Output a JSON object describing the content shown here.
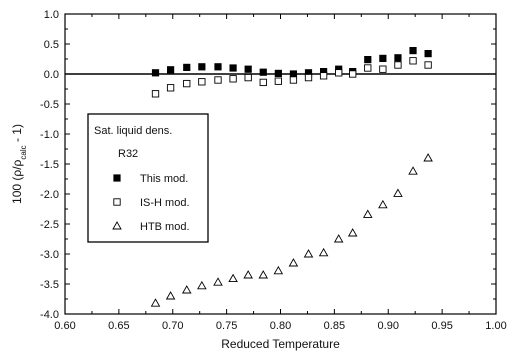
{
  "chart_data": {
    "type": "scatter",
    "xlabel": "Reduced Temperature",
    "ylabel": "100 (ρ/ρcalc - 1)",
    "xlim": [
      0.6,
      1.0
    ],
    "ylim": [
      -4.0,
      1.0
    ],
    "xticks": [
      "0.60",
      "0.65",
      "0.70",
      "0.75",
      "0.80",
      "0.85",
      "0.90",
      "0.95",
      "1.00"
    ],
    "yticks": [
      "1.0",
      "0.5",
      "0.0",
      "-0.5",
      "-1.0",
      "-1.5",
      "-2.0",
      "-2.5",
      "-3.0",
      "-3.5",
      "-4.0"
    ],
    "grid": false,
    "reference_line_y": 0.0,
    "legend": {
      "placement": "left-middle",
      "title": "Sat. liquid dens.",
      "subtitle": "R32"
    },
    "series": [
      {
        "name": "This mod.",
        "marker": "filled-square",
        "x": [
          0.684,
          0.698,
          0.713,
          0.727,
          0.742,
          0.756,
          0.77,
          0.784,
          0.798,
          0.812,
          0.826,
          0.84,
          0.854,
          0.867,
          0.881,
          0.895,
          0.909,
          0.923,
          0.937
        ],
        "y": [
          0.02,
          0.07,
          0.11,
          0.12,
          0.12,
          0.1,
          0.08,
          0.03,
          0.01,
          0.0,
          0.02,
          0.04,
          0.08,
          0.04,
          0.24,
          0.26,
          0.27,
          0.39,
          0.34
        ]
      },
      {
        "name": "IS-H mod.",
        "marker": "open-square",
        "x": [
          0.684,
          0.698,
          0.713,
          0.727,
          0.742,
          0.756,
          0.77,
          0.784,
          0.798,
          0.812,
          0.826,
          0.84,
          0.854,
          0.867,
          0.881,
          0.895,
          0.909,
          0.923,
          0.937
        ],
        "y": [
          -0.33,
          -0.23,
          -0.16,
          -0.13,
          -0.1,
          -0.08,
          -0.06,
          -0.14,
          -0.12,
          -0.1,
          -0.06,
          -0.03,
          0.02,
          0.0,
          0.1,
          0.08,
          0.15,
          0.22,
          0.15
        ]
      },
      {
        "name": "HTB mod.",
        "marker": "open-triangle",
        "x": [
          0.684,
          0.698,
          0.713,
          0.727,
          0.742,
          0.756,
          0.77,
          0.784,
          0.798,
          0.812,
          0.826,
          0.84,
          0.854,
          0.867,
          0.881,
          0.895,
          0.909,
          0.923,
          0.937
        ],
        "y": [
          -3.82,
          -3.7,
          -3.6,
          -3.53,
          -3.47,
          -3.41,
          -3.35,
          -3.35,
          -3.28,
          -3.15,
          -3.0,
          -2.98,
          -2.75,
          -2.65,
          -2.34,
          -2.18,
          -1.99,
          -1.62,
          -1.4
        ]
      }
    ]
  }
}
